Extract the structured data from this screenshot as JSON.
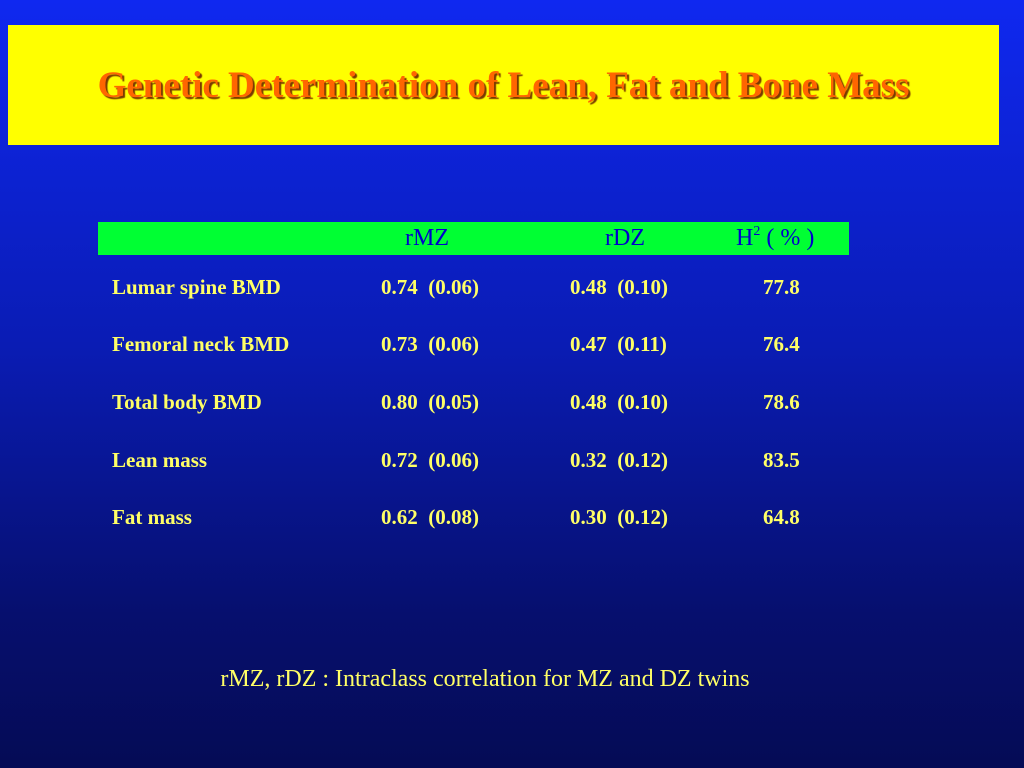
{
  "slide": {
    "title": "Genetic Determination of Lean, Fat and Bone Mass",
    "colors": {
      "background": "#0a1cb4",
      "title_band": "#ffff00",
      "title_text": "#ff6600",
      "header_band": "#00ff33",
      "header_text": "#0000cc",
      "body_text": "#ffff66"
    }
  },
  "table": {
    "headers": {
      "label": "",
      "rmz": "rMZ",
      "rdz": "rDZ",
      "h2_base": "H",
      "h2_sup": "2",
      "h2_unit": " ( % )"
    },
    "rows": [
      {
        "label": "Lumar spine BMD",
        "rmz": "0.74  (0.06)",
        "rdz": "0.48  (0.10)",
        "h2": "77.8"
      },
      {
        "label": "Femoral neck BMD",
        "rmz": "0.73  (0.06)",
        "rdz": "0.47  (0.11)",
        "h2": "76.4"
      },
      {
        "label": "Total body BMD",
        "rmz": "0.80  (0.05)",
        "rdz": "0.48  (0.10)",
        "h2": "78.6"
      },
      {
        "label": "Lean mass",
        "rmz": "0.72  (0.06)",
        "rdz": "0.32  (0.12)",
        "h2": "83.5"
      },
      {
        "label": "Fat mass",
        "rmz": "0.62  (0.08)",
        "rdz": "0.30  (0.12)",
        "h2": "64.8"
      }
    ]
  },
  "footnote": "rMZ, rDZ : Intraclass correlation for MZ and DZ twins"
}
